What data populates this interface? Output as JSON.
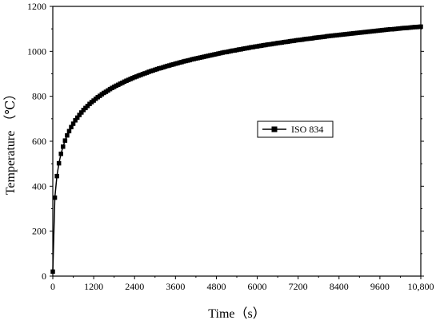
{
  "chart_data": {
    "type": "line",
    "xlabel": "Time（s）",
    "ylabel": "Temperature （℃）",
    "xlim": [
      0,
      10800
    ],
    "ylim": [
      0,
      1200
    ],
    "x_ticks": [
      0,
      1200,
      2400,
      3600,
      4800,
      6000,
      7200,
      8400,
      9600,
      10800
    ],
    "x_tick_labels": [
      "0",
      "1200",
      "2400",
      "3600",
      "4800",
      "6000",
      "7200",
      "8400",
      "9600",
      "10,800"
    ],
    "y_ticks": [
      0,
      200,
      400,
      600,
      800,
      1000,
      1200
    ],
    "y_tick_labels": [
      "0",
      "200",
      "400",
      "600",
      "800",
      "1000",
      "1200"
    ],
    "grid": false,
    "legend_position": "center-right",
    "series": [
      {
        "name": "ISO 834",
        "color": "#000000",
        "marker": "square",
        "x": [
          0,
          60,
          120,
          180,
          240,
          300,
          360,
          420,
          480,
          540,
          600,
          660,
          720,
          780,
          840,
          900,
          960,
          1020,
          1080,
          1140,
          1200,
          1260,
          1320,
          1380,
          1440,
          1500,
          1560,
          1620,
          1680,
          1740,
          1800,
          1860,
          1920,
          1980,
          2040,
          2100,
          2160,
          2220,
          2280,
          2340,
          2400,
          2460,
          2520,
          2580,
          2640,
          2700,
          2760,
          2820,
          2880,
          2940,
          3000,
          3060,
          3120,
          3180,
          3240,
          3300,
          3360,
          3420,
          3480,
          3540,
          3600,
          3660,
          3720,
          3780,
          3840,
          3900,
          3960,
          4020,
          4080,
          4140,
          4200,
          4260,
          4320,
          4380,
          4440,
          4500,
          4560,
          4620,
          4680,
          4740,
          4800,
          4860,
          4920,
          4980,
          5040,
          5100,
          5160,
          5220,
          5280,
          5340,
          5400,
          5460,
          5520,
          5580,
          5640,
          5700,
          5760,
          5820,
          5880,
          5940,
          6000,
          6060,
          6120,
          6180,
          6240,
          6300,
          6360,
          6420,
          6480,
          6540,
          6600,
          6660,
          6720,
          6780,
          6840,
          6900,
          6960,
          7020,
          7080,
          7140,
          7200,
          7260,
          7320,
          7380,
          7440,
          7500,
          7560,
          7620,
          7680,
          7740,
          7800,
          7860,
          7920,
          7980,
          8040,
          8100,
          8160,
          8220,
          8280,
          8340,
          8400,
          8460,
          8520,
          8580,
          8640,
          8700,
          8760,
          8820,
          8880,
          8940,
          9000,
          9060,
          9120,
          9180,
          9240,
          9300,
          9360,
          9420,
          9480,
          9540,
          9600,
          9660,
          9720,
          9780,
          9840,
          9900,
          9960,
          10020,
          10080,
          10140,
          10200,
          10260,
          10320,
          10380,
          10440,
          10500,
          10560,
          10620,
          10680,
          10740,
          10800
        ],
        "y": [
          20,
          349,
          445,
          502,
          544,
          576,
          603,
          626,
          645,
          663,
          678,
          693,
          705,
          717,
          728,
          739,
          748,
          757,
          766,
          774,
          781,
          789,
          796,
          802,
          809,
          815,
          820,
          826,
          832,
          837,
          842,
          847,
          851,
          856,
          860,
          865,
          869,
          873,
          877,
          881,
          885,
          888,
          892,
          895,
          899,
          902,
          905,
          909,
          912,
          915,
          918,
          921,
          924,
          926,
          929,
          932,
          935,
          937,
          940,
          942,
          945,
          947,
          950,
          952,
          955,
          957,
          959,
          961,
          964,
          966,
          968,
          970,
          972,
          974,
          976,
          978,
          980,
          982,
          984,
          986,
          988,
          990,
          992,
          994,
          996,
          997,
          999,
          1001,
          1003,
          1004,
          1006,
          1008,
          1009,
          1011,
          1013,
          1014,
          1016,
          1018,
          1019,
          1021,
          1022,
          1024,
          1025,
          1027,
          1028,
          1030,
          1031,
          1032,
          1034,
          1035,
          1037,
          1038,
          1039,
          1041,
          1042,
          1043,
          1045,
          1046,
          1047,
          1049,
          1050,
          1051,
          1052,
          1054,
          1055,
          1056,
          1057,
          1058,
          1060,
          1061,
          1062,
          1063,
          1064,
          1065,
          1067,
          1068,
          1069,
          1070,
          1071,
          1072,
          1073,
          1074,
          1075,
          1076,
          1077,
          1078,
          1079,
          1080,
          1081,
          1082,
          1083,
          1084,
          1085,
          1086,
          1087,
          1088,
          1089,
          1090,
          1091,
          1092,
          1093,
          1094,
          1095,
          1096,
          1097,
          1098,
          1098,
          1099,
          1100,
          1101,
          1102,
          1103,
          1104,
          1104,
          1105,
          1106,
          1107,
          1108,
          1108,
          1109,
          1110
        ]
      }
    ]
  }
}
